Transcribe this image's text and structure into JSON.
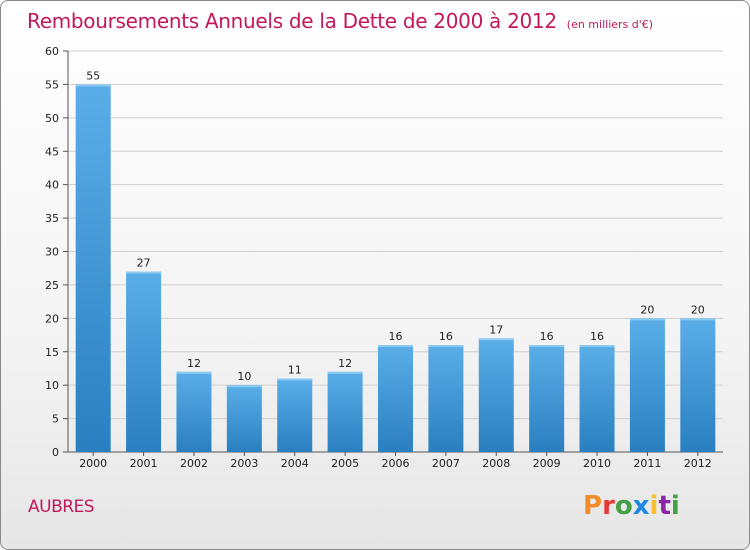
{
  "title": "Remboursements Annuels de la Dette de 2000 à 2012",
  "unit": "(en milliers d'€)",
  "commune": "AUBRES",
  "logo": "Proxiti",
  "colors": {
    "title": "#c2185b",
    "bar_top": "#5aaee8",
    "bar_bottom": "#2a7fc0",
    "grid": "#cfcfcf"
  },
  "chart_data": {
    "type": "bar",
    "title": "Remboursements Annuels de la Dette de 2000 à 2012",
    "subtitle": "(en milliers d'€)",
    "categories": [
      "2000",
      "2001",
      "2002",
      "2003",
      "2004",
      "2005",
      "2006",
      "2007",
      "2008",
      "2009",
      "2010",
      "2011",
      "2012"
    ],
    "values": [
      55,
      27,
      12,
      10,
      11,
      12,
      16,
      16,
      17,
      16,
      16,
      20,
      20
    ],
    "xlabel": "",
    "ylabel": "",
    "ylim": [
      0,
      60
    ],
    "yticks": [
      0,
      5,
      10,
      15,
      20,
      25,
      30,
      35,
      40,
      45,
      50,
      55,
      60
    ],
    "grid": true,
    "data_labels": true
  }
}
